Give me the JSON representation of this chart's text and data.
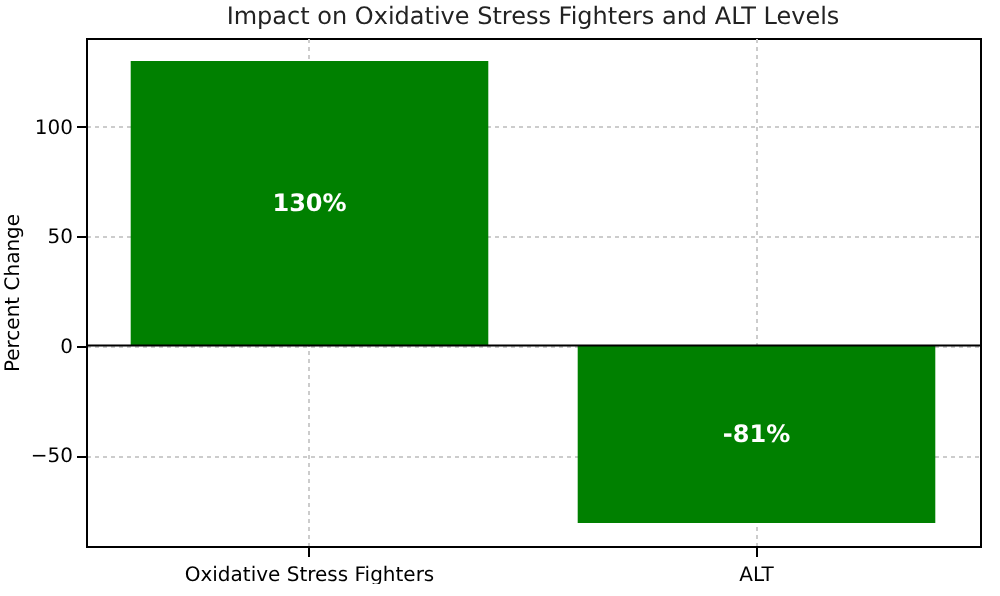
{
  "chart_data": {
    "type": "bar",
    "title": "Impact on Oxidative Stress Fighters and ALT Levels",
    "ylabel": "Percent Change",
    "categories": [
      "Oxidative Stress Fighters",
      "ALT"
    ],
    "values": [
      130,
      -81
    ],
    "color": "#008000",
    "value_labels": [
      "130%",
      "-81%"
    ],
    "ylim": [
      -91.55,
      140.55
    ],
    "yticks": [
      -50,
      0,
      50,
      100
    ],
    "grid": true,
    "ref_lines": [
      {
        "axis": "y",
        "value": 0,
        "color": "#000000"
      }
    ]
  }
}
